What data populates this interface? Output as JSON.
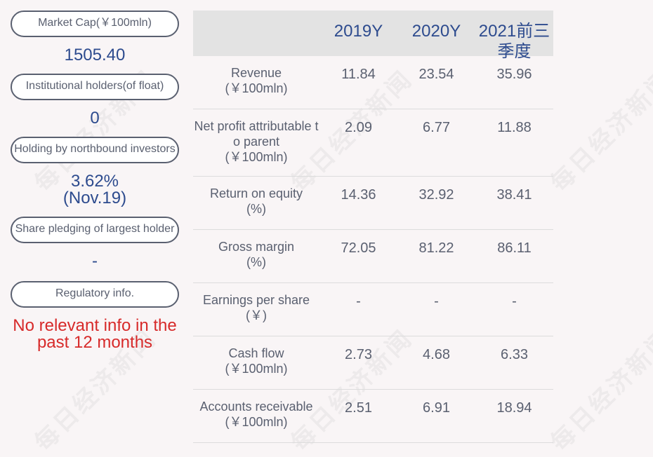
{
  "left_panel": [
    {
      "label": "Market Cap(￥100mln)",
      "value": "1505.40"
    },
    {
      "label": "Institutional holders(of float)",
      "value": "0"
    },
    {
      "label": "Holding by northbound investors",
      "value": "3.62%",
      "value2": "(Nov.19)"
    },
    {
      "label": "Share pledging of largest holder",
      "value": "-"
    },
    {
      "label": "Regulatory info.",
      "value": "No relevant info in the",
      "value2": "past 12 months"
    }
  ],
  "table": {
    "headers": [
      "2019Y",
      "2020Y",
      "2021前三",
      "季度"
    ],
    "rows": [
      {
        "metric": [
          "Revenue",
          "(￥100mln)"
        ],
        "values": [
          "11.84",
          "23.54",
          "35.96"
        ]
      },
      {
        "metric": [
          "Net profit attributable t",
          "o parent",
          "(￥100mln)"
        ],
        "values": [
          "2.09",
          "6.77",
          "11.88"
        ]
      },
      {
        "metric": [
          "Return on equity",
          "(%)"
        ],
        "values": [
          "14.36",
          "32.92",
          "38.41"
        ]
      },
      {
        "metric": [
          "Gross margin",
          "(%)"
        ],
        "values": [
          "72.05",
          "81.22",
          "86.11"
        ]
      },
      {
        "metric": [
          "Earnings per share",
          "(￥)"
        ],
        "values": [
          "-",
          "-",
          "-"
        ]
      },
      {
        "metric": [
          "Cash flow",
          "(￥100mln)"
        ],
        "values": [
          "2.73",
          "4.68",
          "6.33"
        ]
      },
      {
        "metric": [
          "Accounts receivable",
          "(￥100mln)"
        ],
        "values": [
          "2.51",
          "6.91",
          "18.94"
        ]
      }
    ]
  },
  "watermark": "每日经济新闻"
}
